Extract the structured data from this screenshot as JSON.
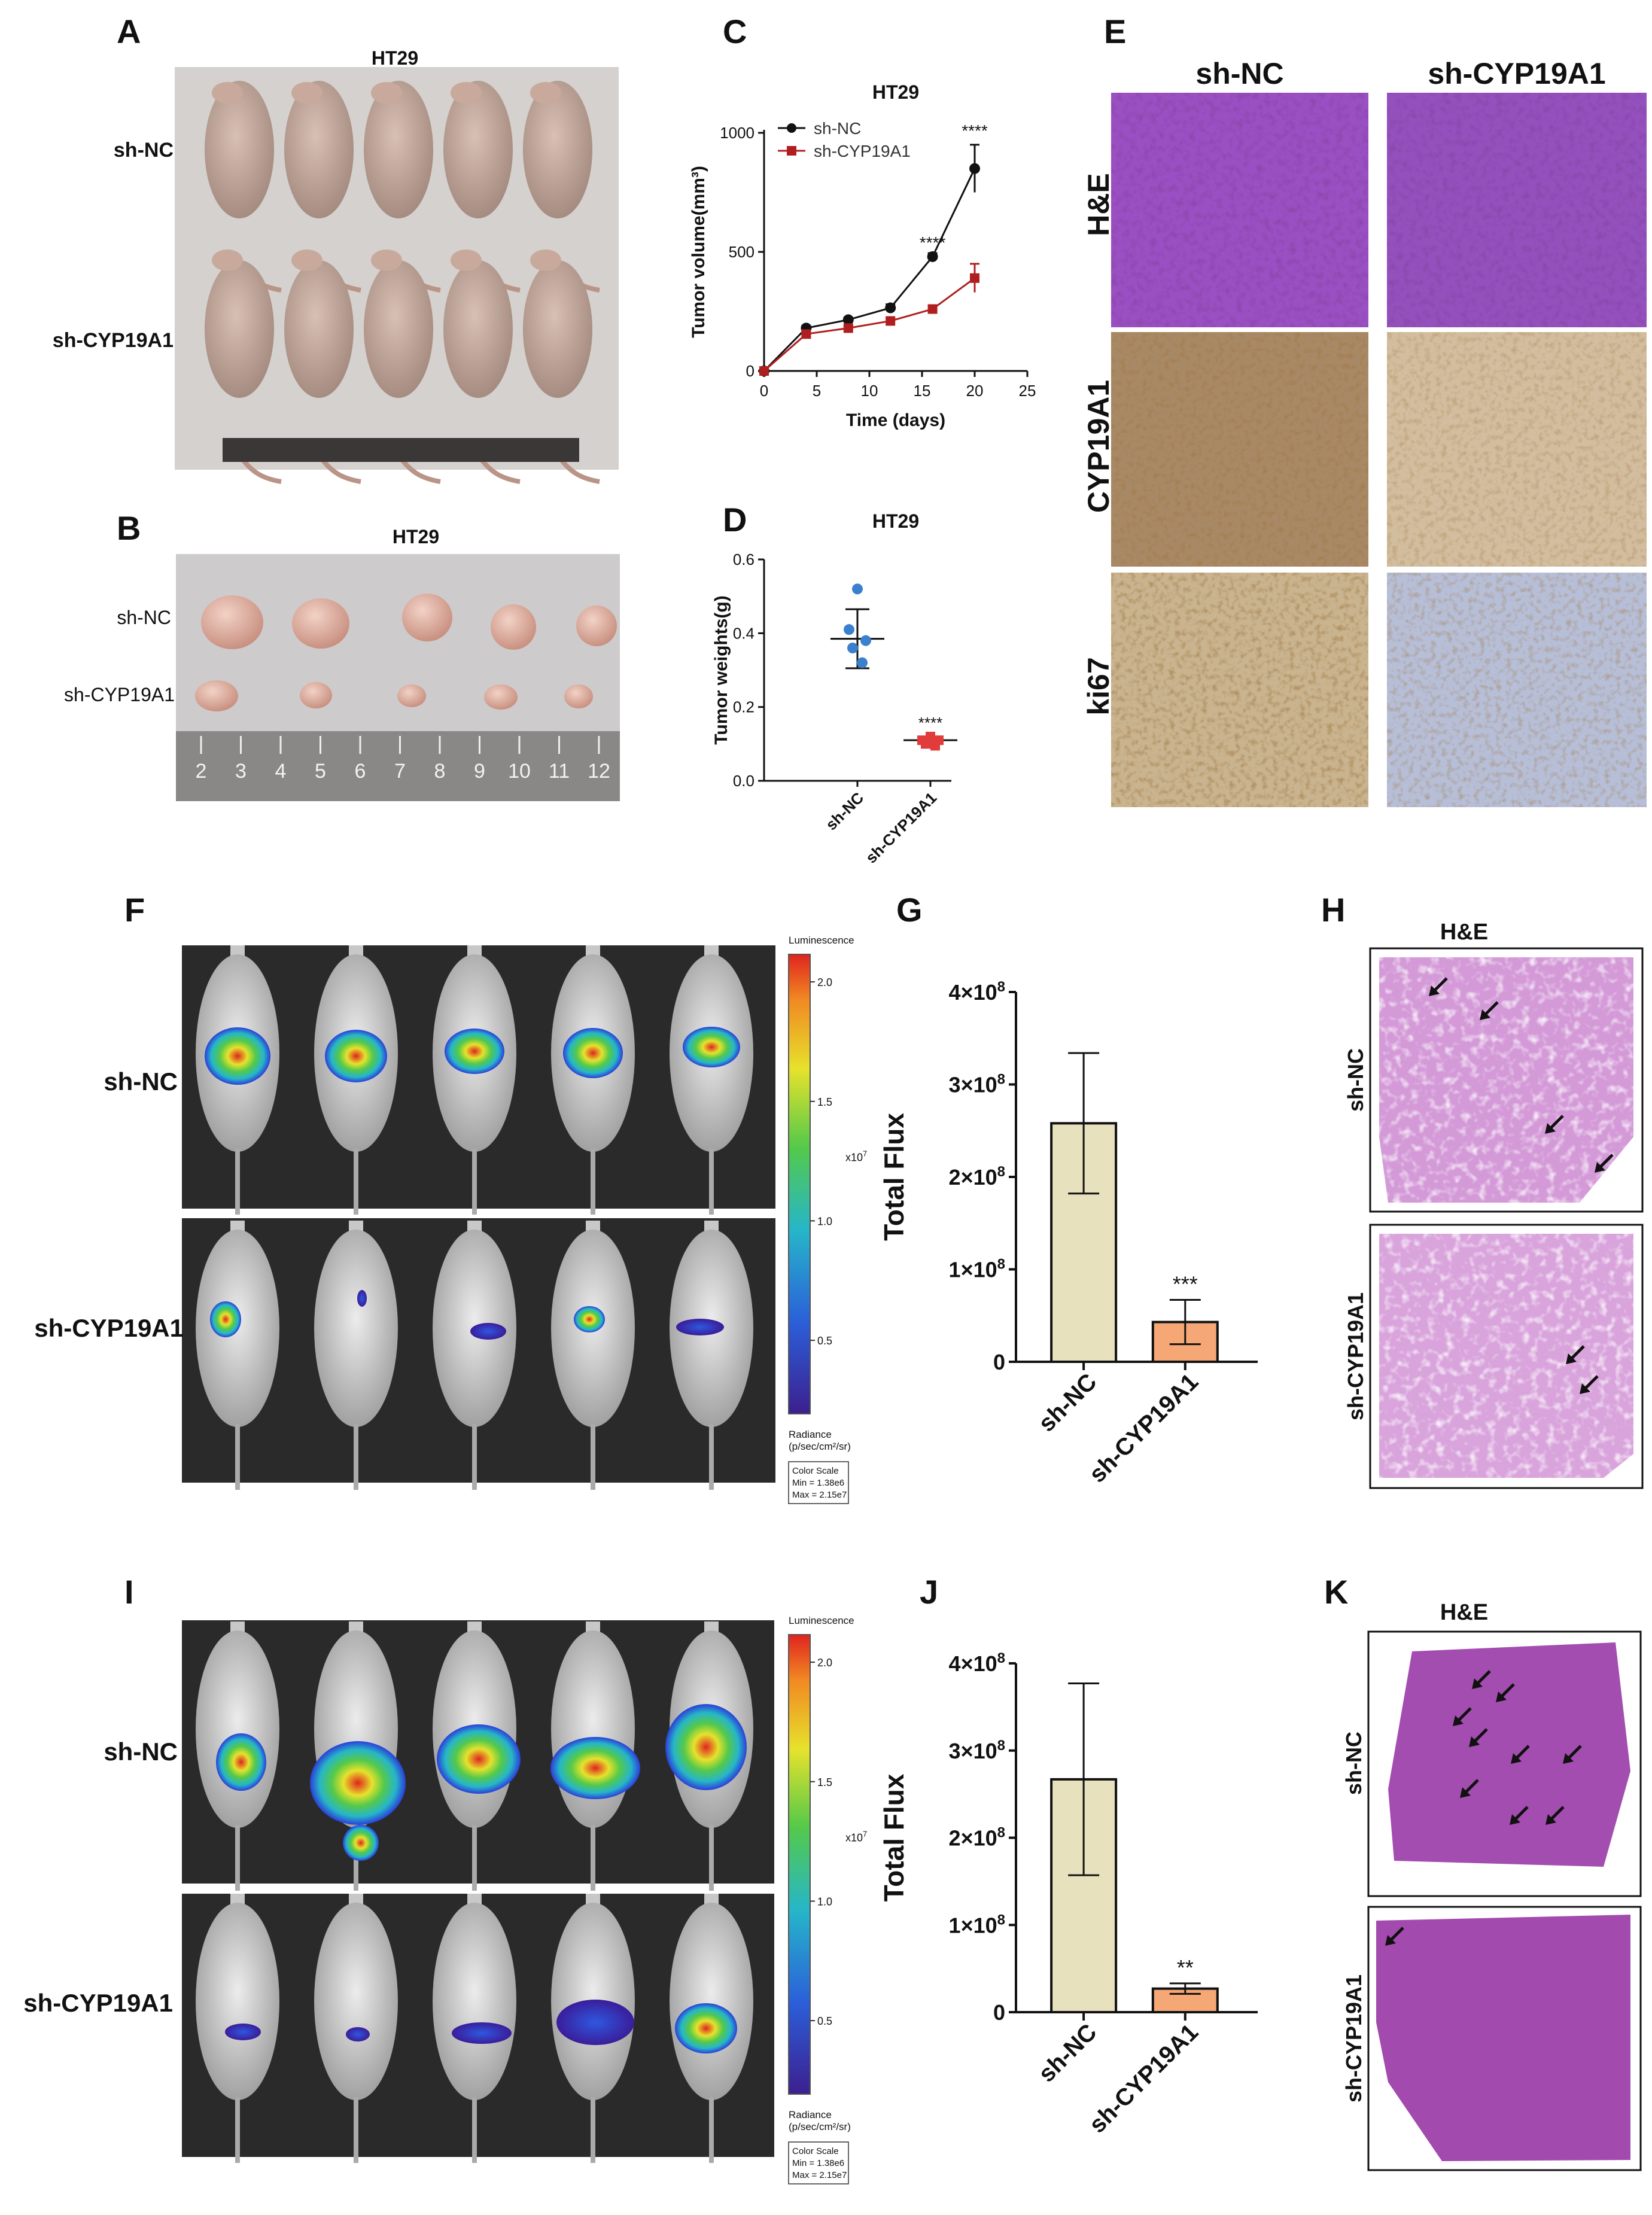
{
  "panels": {
    "A": {
      "letter": "A",
      "title": "HT29",
      "row1": "sh-NC",
      "row2": "sh-CYP19A1",
      "mice_per_group": 5
    },
    "B": {
      "letter": "B",
      "title": "HT29",
      "row1": "sh-NC",
      "row2": "sh-CYP19A1",
      "ruler_labels": [
        "2",
        "3",
        "4",
        "5",
        "6",
        "7",
        "8",
        "9",
        "10",
        "11",
        "12"
      ]
    },
    "C": {
      "letter": "C"
    },
    "D": {
      "letter": "D"
    },
    "E": {
      "letter": "E",
      "col1": "sh-NC",
      "col2": "sh-CYP19A1",
      "rows": [
        "H&E",
        "CYP19A1",
        "ki67"
      ]
    },
    "F": {
      "letter": "F",
      "row1": "sh-NC",
      "row2": "sh-CYP19A1",
      "colorbar": {
        "title": "Luminescence",
        "ticks": [
          "2.0",
          "1.5",
          "1.0",
          "0.5"
        ],
        "exponent": "x10",
        "exponent_power": "7",
        "unit_line1": "Radiance",
        "unit_line2": "(p/sec/cm²/sr)",
        "scale_line1": "Color Scale",
        "scale_line2": "Min = 1.38e6",
        "scale_line3": "Max = 2.15e7"
      }
    },
    "G": {
      "letter": "G"
    },
    "H": {
      "letter": "H",
      "title": "H&E",
      "row1": "sh-NC",
      "row2": "sh-CYP19A1"
    },
    "I": {
      "letter": "I",
      "row1": "sh-NC",
      "row2": "sh-CYP19A1",
      "colorbar": {
        "title": "Luminescence",
        "ticks": [
          "2.0",
          "1.5",
          "1.0",
          "0.5"
        ],
        "exponent": "x10",
        "exponent_power": "7",
        "unit_line1": "Radiance",
        "unit_line2": "(p/sec/cm²/sr)",
        "scale_line1": "Color Scale",
        "scale_line2": "Min = 1.38e6",
        "scale_line3": "Max = 2.15e7"
      }
    },
    "J": {
      "letter": "J"
    },
    "K": {
      "letter": "K",
      "title": "H&E",
      "row1": "sh-NC",
      "row2": "sh-CYP19A1"
    }
  },
  "chart_data": [
    {
      "panel": "C",
      "type": "line",
      "title": "HT29",
      "xlabel": "Time (days)",
      "ylabel": "Tumor volume(mm³)",
      "x": [
        0,
        4,
        8,
        12,
        16,
        20
      ],
      "xlim": [
        0,
        25
      ],
      "ylim": [
        0,
        1000
      ],
      "xticks": [
        0,
        5,
        10,
        15,
        20,
        25
      ],
      "yticks": [
        0,
        500,
        1000
      ],
      "series": [
        {
          "name": "sh-NC",
          "values": [
            0,
            180,
            215,
            265,
            480,
            850
          ],
          "errors": [
            0,
            10,
            10,
            15,
            15,
            100
          ],
          "color": "#111111",
          "marker": "circle"
        },
        {
          "name": "sh-CYP19A1",
          "values": [
            0,
            155,
            180,
            210,
            260,
            390
          ],
          "errors": [
            0,
            10,
            10,
            10,
            15,
            60
          ],
          "color": "#b01f1f",
          "marker": "square"
        }
      ],
      "annotations": [
        {
          "x": 16,
          "y": 480,
          "text": "****"
        },
        {
          "x": 20,
          "y": 950,
          "text": "****"
        }
      ],
      "legend": "top-left",
      "grid": false
    },
    {
      "panel": "D",
      "type": "scatter",
      "title": "HT29",
      "ylabel": "Tumor weights(g)",
      "categories": [
        "sh-NC",
        "sh-CYP19A1"
      ],
      "ylim": [
        0,
        0.6
      ],
      "yticks": [
        0.0,
        0.2,
        0.4,
        0.6
      ],
      "series": [
        {
          "name": "sh-NC",
          "points": [
            0.52,
            0.41,
            0.38,
            0.36,
            0.32
          ],
          "mean": 0.385,
          "sd": 0.08,
          "color": "#3a80cc"
        },
        {
          "name": "sh-CYP19A1",
          "points": [
            0.12,
            0.11,
            0.11,
            0.1,
            0.095
          ],
          "mean": 0.11,
          "sd": 0.01,
          "color": "#e23b3b"
        }
      ],
      "annotations": [
        {
          "category": "sh-CYP19A1",
          "text": "****"
        }
      ]
    },
    {
      "panel": "G",
      "type": "bar",
      "ylabel": "Total Flux",
      "categories": [
        "sh-NC",
        "sh-CYP19A1"
      ],
      "values": [
        258000000,
        43000000
      ],
      "errors": [
        76000000,
        24000000
      ],
      "ylim": [
        0,
        400000000
      ],
      "ytick_values": [
        0,
        100000000,
        200000000,
        300000000,
        400000000
      ],
      "ytick_labels": [
        "0",
        "1×10",
        "2×10",
        "3×10",
        "4×10"
      ],
      "ytick_power": "8",
      "colors": [
        "#e8e1bd",
        "#f6a776"
      ],
      "annotations": [
        {
          "category": "sh-CYP19A1",
          "text": "***"
        }
      ]
    },
    {
      "panel": "J",
      "type": "bar",
      "ylabel": "Total Flux",
      "categories": [
        "sh-NC",
        "sh-CYP19A1"
      ],
      "values": [
        267000000,
        27000000
      ],
      "errors": [
        110000000,
        6000000
      ],
      "ylim": [
        0,
        400000000
      ],
      "ytick_values": [
        0,
        100000000,
        200000000,
        300000000,
        400000000
      ],
      "ytick_labels": [
        "0",
        "1×10",
        "2×10",
        "3×10",
        "4×10"
      ],
      "ytick_power": "8",
      "colors": [
        "#e8e1bd",
        "#f6a776"
      ],
      "annotations": [
        {
          "category": "sh-CYP19A1",
          "text": "**"
        }
      ]
    }
  ]
}
